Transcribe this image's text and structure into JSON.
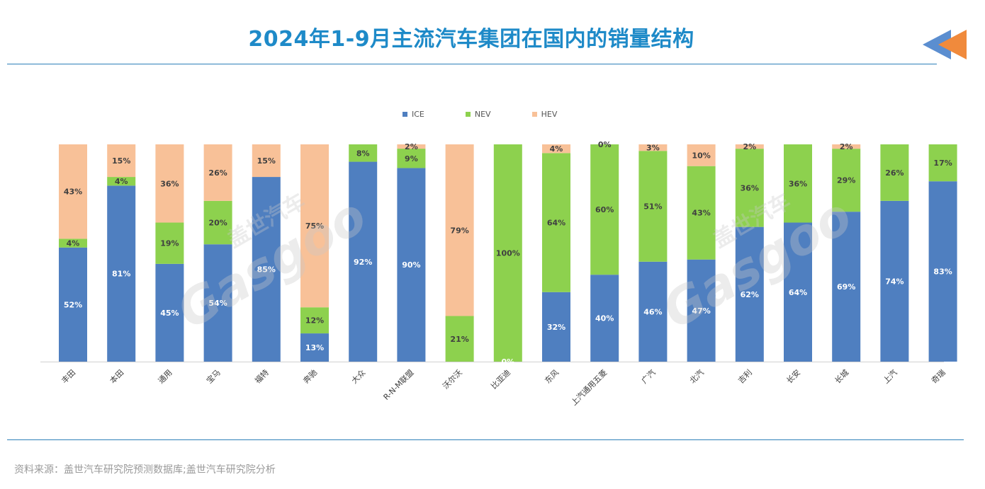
{
  "title": "2024年1-9月主流汽车集团在国内的销量结构",
  "source": "资料来源：盖世汽车研究院预测数据库;盖世汽车研究院分析",
  "watermark": {
    "brand": "Gasgoo",
    "cn": "盖世汽车"
  },
  "colors": {
    "ICE": "#4f7fc0",
    "NEV": "#8dd14e",
    "HEV": "#f8c198",
    "title": "#1e8ac8",
    "rule": "#2c7fb8"
  },
  "chart_data": {
    "type": "bar",
    "stacked": true,
    "categories": [
      "丰田",
      "本田",
      "通用",
      "宝马",
      "福特",
      "奔驰",
      "大众",
      "R-N-M联盟",
      "沃尔沃",
      "比亚迪",
      "东风",
      "上汽通用五菱",
      "广汽",
      "北汽",
      "吉利",
      "长安",
      "长城",
      "上汽",
      "奇瑞"
    ],
    "series": [
      {
        "name": "ICE",
        "values": [
          52,
          81,
          45,
          54,
          85,
          13,
          92,
          90,
          0,
          0,
          32,
          40,
          46,
          47,
          62,
          64,
          69,
          74,
          83
        ]
      },
      {
        "name": "NEV",
        "values": [
          4,
          4,
          19,
          20,
          0,
          12,
          8,
          9,
          21,
          100,
          64,
          60,
          51,
          43,
          36,
          36,
          29,
          26,
          17
        ]
      },
      {
        "name": "HEV",
        "values": [
          43,
          15,
          36,
          26,
          15,
          75,
          0,
          2,
          79,
          0,
          4,
          0,
          3,
          10,
          2,
          0,
          2,
          0,
          0
        ]
      }
    ],
    "labels": {
      "ICE": [
        "52%",
        "81%",
        "45%",
        "54%",
        "85%",
        "13%",
        "92%",
        "90%",
        "",
        "",
        "32%",
        "40%",
        "46%",
        "47%",
        "62%",
        "64%",
        "69%",
        "74%",
        "83%"
      ],
      "NEV": [
        "4%",
        "4%",
        "19%",
        "20%",
        "",
        "12%",
        "8%",
        "9%",
        "21%",
        "100%",
        "64%",
        "60%",
        "51%",
        "43%",
        "36%",
        "36%",
        "29%",
        "26%",
        "17%"
      ],
      "HEV": [
        "43%",
        "15%",
        "36%",
        "26%",
        "15%",
        "75%",
        "",
        "2%",
        "79%",
        "",
        "4%",
        "0%",
        "3%",
        "10%",
        "2%",
        "",
        "2%",
        "",
        ""
      ]
    },
    "extra_labels": [
      {
        "category": "比亚迪",
        "series": "ICE",
        "text": "0%"
      }
    ],
    "ylim": [
      0,
      100
    ],
    "legend": [
      "ICE",
      "NEV",
      "HEV"
    ],
    "legend_position": "top-center"
  }
}
